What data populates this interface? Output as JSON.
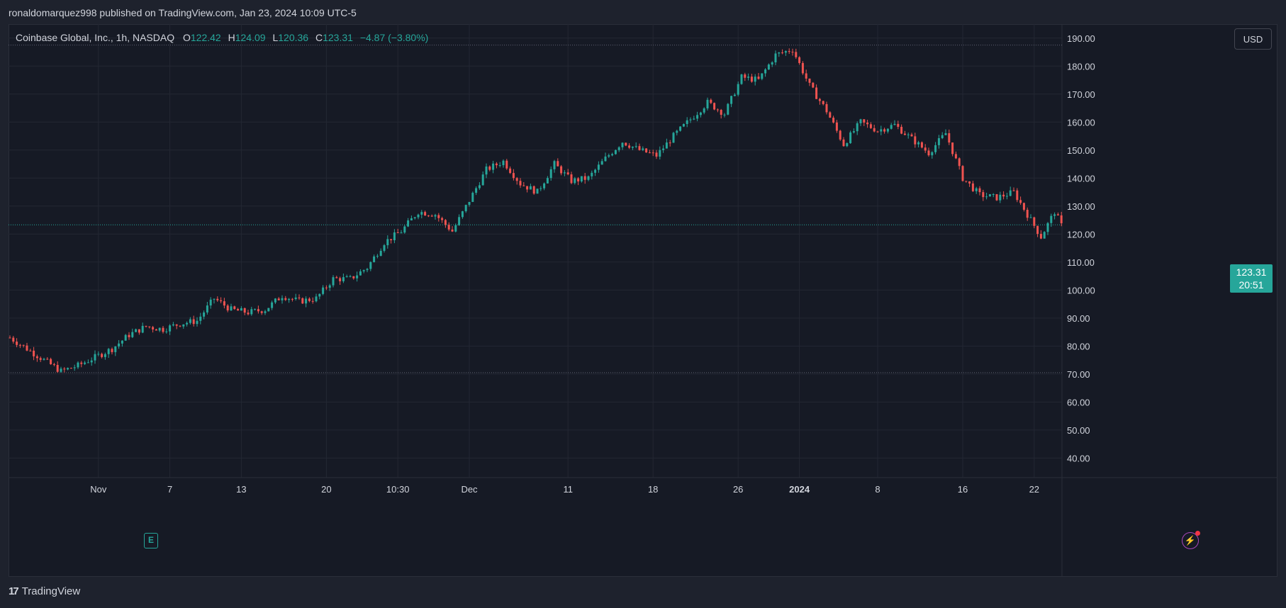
{
  "header": {
    "publisher": "ronaldomarquez998 published on TradingView.com, Jan 23, 2024 10:09 UTC-5"
  },
  "legend": {
    "symbol": "Coinbase Global, Inc., 1h, NASDAQ",
    "open_label": "O",
    "open": "122.42",
    "high_label": "H",
    "high": "124.09",
    "low_label": "L",
    "low": "120.36",
    "close_label": "C",
    "close": "123.31",
    "change": "−4.87 (−3.80%)"
  },
  "currency_button": "USD",
  "last_price": {
    "price": "123.31",
    "countdown": "20:51"
  },
  "earnings_marker": "E",
  "footer": {
    "brand": "TradingView"
  },
  "colors": {
    "up": "#26a69a",
    "down": "#ef5350",
    "background": "#161a25",
    "grid": "#232733",
    "text": "#d1d4dc"
  },
  "chart_data": {
    "type": "candlestick",
    "interval": "1h",
    "ylim": [
      33,
      195
    ],
    "y_ticks": [
      "40.00",
      "50.00",
      "60.00",
      "70.00",
      "80.00",
      "90.00",
      "100.00",
      "110.00",
      "120.00",
      "130.00",
      "140.00",
      "150.00",
      "160.00",
      "170.00",
      "180.00",
      "190.00"
    ],
    "x_ticks": [
      {
        "label": "Nov",
        "index": 26,
        "bold": false
      },
      {
        "label": "7",
        "index": 47,
        "bold": false
      },
      {
        "label": "13",
        "index": 68,
        "bold": false
      },
      {
        "label": "20",
        "index": 93,
        "bold": false
      },
      {
        "label": "10:30",
        "index": 114,
        "bold": false
      },
      {
        "label": "Dec",
        "index": 135,
        "bold": false
      },
      {
        "label": "11",
        "index": 164,
        "bold": false
      },
      {
        "label": "18",
        "index": 189,
        "bold": false
      },
      {
        "label": "26",
        "index": 214,
        "bold": false
      },
      {
        "label": "2024",
        "index": 232,
        "bold": true
      },
      {
        "label": "8",
        "index": 255,
        "bold": false
      },
      {
        "label": "16",
        "index": 280,
        "bold": false
      },
      {
        "label": "22",
        "index": 301,
        "bold": false
      }
    ],
    "reference_lines": [
      187.5,
      70.5
    ],
    "last_price": 123.31,
    "ohlc_anchors": [
      [
        0,
        83
      ],
      [
        5,
        79
      ],
      [
        10,
        75
      ],
      [
        15,
        71
      ],
      [
        20,
        73
      ],
      [
        25,
        76
      ],
      [
        30,
        79
      ],
      [
        35,
        84
      ],
      [
        40,
        87
      ],
      [
        45,
        86
      ],
      [
        50,
        88
      ],
      [
        55,
        89
      ],
      [
        60,
        97
      ],
      [
        65,
        93
      ],
      [
        70,
        92
      ],
      [
        75,
        93
      ],
      [
        80,
        98
      ],
      [
        85,
        96
      ],
      [
        90,
        97
      ],
      [
        95,
        104
      ],
      [
        100,
        104
      ],
      [
        105,
        108
      ],
      [
        110,
        117
      ],
      [
        115,
        121
      ],
      [
        120,
        128
      ],
      [
        125,
        127
      ],
      [
        130,
        121
      ],
      [
        135,
        132
      ],
      [
        140,
        143
      ],
      [
        145,
        146
      ],
      [
        150,
        138
      ],
      [
        155,
        135
      ],
      [
        160,
        145
      ],
      [
        165,
        139
      ],
      [
        170,
        140
      ],
      [
        175,
        147
      ],
      [
        180,
        153
      ],
      [
        185,
        150
      ],
      [
        190,
        148
      ],
      [
        195,
        155
      ],
      [
        200,
        161
      ],
      [
        205,
        167
      ],
      [
        210,
        163
      ],
      [
        215,
        176
      ],
      [
        220,
        175
      ],
      [
        225,
        184
      ],
      [
        230,
        186
      ],
      [
        235,
        173
      ],
      [
        240,
        164
      ],
      [
        245,
        152
      ],
      [
        250,
        160
      ],
      [
        255,
        157
      ],
      [
        260,
        159
      ],
      [
        265,
        154
      ],
      [
        270,
        149
      ],
      [
        275,
        156
      ],
      [
        280,
        140
      ],
      [
        285,
        134
      ],
      [
        290,
        133
      ],
      [
        295,
        135
      ],
      [
        300,
        125
      ],
      [
        303,
        119
      ],
      [
        307,
        128
      ],
      [
        309,
        123
      ]
    ],
    "seed": 7
  }
}
